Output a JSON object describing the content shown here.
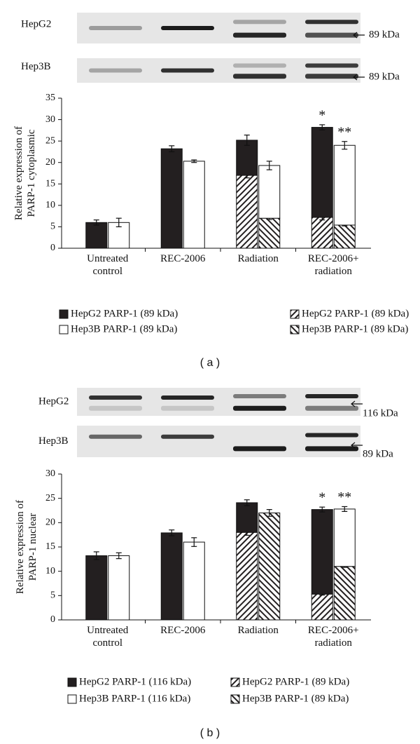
{
  "chart_data": [
    {
      "type": "bar",
      "panel": "( a )",
      "blot_labels": {
        "rows": [
          "HepG2",
          "Hep3B"
        ],
        "markers": [
          "89 kDa",
          "89 kDa"
        ]
      },
      "ylabel": "Relative expression of PARP-1 cytoplasmic",
      "categories": [
        "Untreated control",
        "REC-2006",
        "Radiation",
        "REC-2006+ radiation"
      ],
      "ylim": [
        0,
        35
      ],
      "yticks": [
        0,
        5,
        10,
        15,
        20,
        25,
        30,
        35
      ],
      "grid": false,
      "series": [
        {
          "name": "HepG2 PARP-1 (89 kDa)",
          "color": "#231f20",
          "values": [
            6,
            23.2,
            8.2,
            21
          ],
          "errors": [
            0.6,
            0.7,
            1.2,
            0.6
          ]
        },
        {
          "name": "Hep3B PARP-1 (89 kDa)",
          "color": "#ffffff",
          "values": [
            6,
            20.3,
            12.3,
            18.6
          ],
          "errors": [
            1.0,
            0.3,
            1.0,
            0.9
          ]
        },
        {
          "name": "HepG2 PARP-1 (89 kDa)",
          "color": "#231f20",
          "hatch": "/",
          "values": [
            null,
            null,
            17,
            7.2
          ],
          "errors": [
            null,
            null,
            0.6,
            0.6
          ]
        },
        {
          "name": "Hep3B PARP-1 (89 kDa)",
          "color": "#231f20",
          "hatch": "\\",
          "values": [
            null,
            null,
            7,
            5.4
          ],
          "errors": [
            null,
            null,
            0.3,
            0.2
          ]
        }
      ],
      "annotations": [
        "*",
        "**"
      ]
    },
    {
      "type": "bar",
      "panel": "( b )",
      "blot_labels": {
        "rows": [
          "HepG2",
          "Hep3B"
        ],
        "markers": [
          "116 kDa",
          "89 kDa"
        ]
      },
      "ylabel": "Relative expression of PARP-1 nuclear",
      "categories": [
        "Untreated control",
        "REC-2006",
        "Radiation",
        "REC-2006+ radiation"
      ],
      "ylim": [
        0,
        30
      ],
      "yticks": [
        0,
        5,
        10,
        15,
        20,
        25,
        30
      ],
      "grid": false,
      "series": [
        {
          "name": "HepG2 PARP-1 (116 kDa)",
          "color": "#231f20",
          "values": [
            13.2,
            17.9,
            6.1,
            17.4
          ],
          "errors": [
            0.8,
            0.6,
            0.6,
            0.5
          ]
        },
        {
          "name": "Hep3B PARP-1 (116 kDa)",
          "color": "#ffffff",
          "values": [
            13.2,
            16,
            null,
            11.8
          ],
          "errors": [
            0.6,
            0.9,
            null,
            0.5
          ]
        },
        {
          "name": "HepG2 PARP-1 (89 kDa)",
          "color": "#231f20",
          "hatch": "/",
          "values": [
            null,
            null,
            18,
            5.3
          ],
          "errors": [
            null,
            null,
            0.6,
            0.2
          ]
        },
        {
          "name": "Hep3B PARP-1 (89 kDa)",
          "color": "#231f20",
          "hatch": "\\",
          "values": [
            null,
            null,
            22,
            11
          ],
          "errors": [
            null,
            null,
            0.7,
            0.2
          ]
        }
      ],
      "annotations": [
        "*",
        "**"
      ]
    }
  ]
}
